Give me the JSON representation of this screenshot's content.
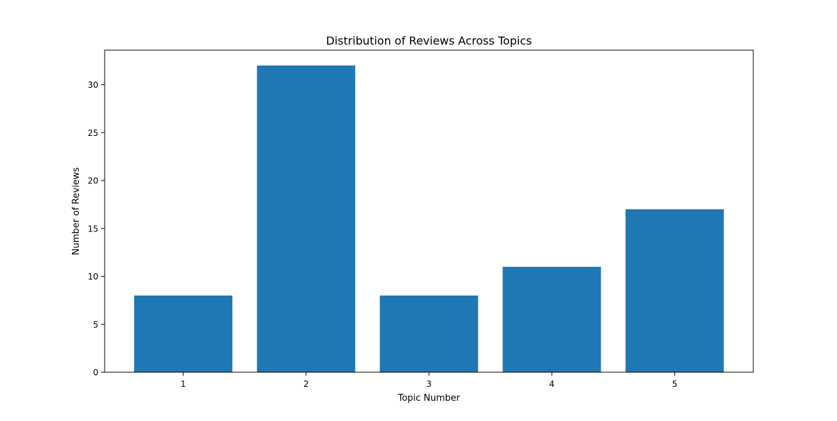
{
  "chart_data": {
    "type": "bar",
    "title": "Distribution of Reviews Across Topics",
    "xlabel": "Topic Number",
    "ylabel": "Number of Reviews",
    "categories": [
      "1",
      "2",
      "3",
      "4",
      "5"
    ],
    "values": [
      8,
      32,
      8,
      11,
      17
    ],
    "ylim": [
      0,
      33.6
    ],
    "yticks": [
      0,
      5,
      10,
      15,
      20,
      25,
      30
    ],
    "bar_color": "#1f77b4",
    "grid": false,
    "legend": "none"
  }
}
